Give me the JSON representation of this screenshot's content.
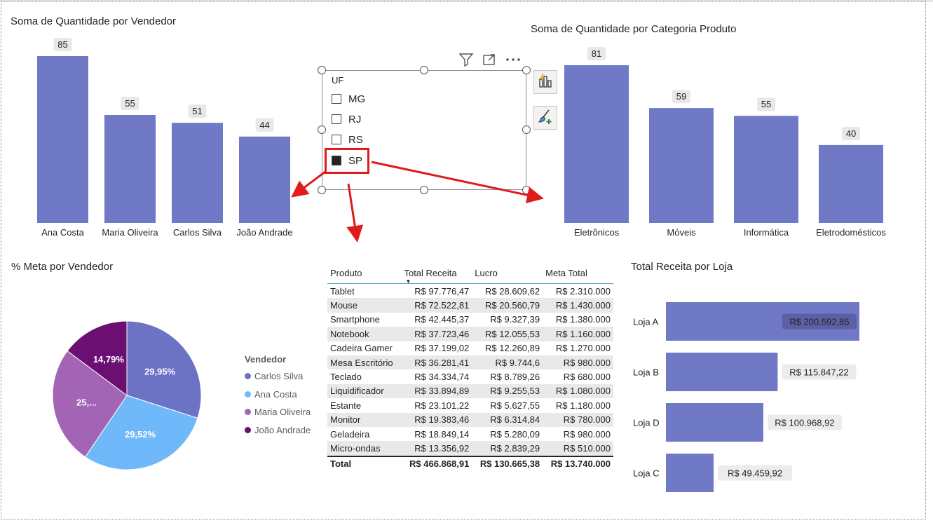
{
  "colors": {
    "bar": "#7079C6",
    "arrow": "#E01B1B",
    "pie": [
      "#6C73C4",
      "#6FB8F9",
      "#A364B5",
      "#6B0F72"
    ]
  },
  "vendedor_chart": {
    "title": "Soma de Quantidade por Vendedor"
  },
  "categoria_chart": {
    "title": "Soma de Quantidade por Categoria Produto"
  },
  "meta_chart": {
    "title": "% Meta por Vendedor",
    "legend_title": "Vendedor",
    "legend": [
      "Carlos Silva",
      "Ana Costa",
      "Maria Oliveira",
      "João Andrade"
    ]
  },
  "loja_chart": {
    "title": "Total Receita por Loja"
  },
  "slicer": {
    "title": "UF",
    "items": [
      {
        "label": "MG",
        "checked": false
      },
      {
        "label": "RJ",
        "checked": false
      },
      {
        "label": "RS",
        "checked": false
      },
      {
        "label": "SP",
        "checked": true
      }
    ],
    "icons": [
      "filter-icon",
      "focus-mode-icon",
      "more-options-icon"
    ],
    "side_buttons": [
      "build-visual-icon",
      "format-visual-icon"
    ]
  },
  "table": {
    "headers": [
      "Produto",
      "Total Receita",
      "Lucro",
      "Meta Total"
    ],
    "rows": [
      [
        "Tablet",
        "R$ 97.776,47",
        "R$ 28.609,62",
        "R$ 2.310.000"
      ],
      [
        "Mouse",
        "R$ 72.522,81",
        "R$ 20.560,79",
        "R$ 1.430.000"
      ],
      [
        "Smartphone",
        "R$ 42.445,37",
        "R$ 9.327,39",
        "R$ 1.380.000"
      ],
      [
        "Notebook",
        "R$ 37.723,46",
        "R$ 12.055,53",
        "R$ 1.160.000"
      ],
      [
        "Cadeira Gamer",
        "R$ 37.199,02",
        "R$ 12.260,89",
        "R$ 1.270.000"
      ],
      [
        "Mesa Escritório",
        "R$ 36.281,41",
        "R$ 9.744,6",
        "R$ 980.000"
      ],
      [
        "Teclado",
        "R$ 34.334,74",
        "R$ 8.789,26",
        "R$ 680.000"
      ],
      [
        "Liquidificador",
        "R$ 33.894,89",
        "R$ 9.255,53",
        "R$ 1.080.000"
      ],
      [
        "Estante",
        "R$ 23.101,22",
        "R$ 5.627,55",
        "R$ 1.180.000"
      ],
      [
        "Monitor",
        "R$ 19.383,46",
        "R$ 6.314,84",
        "R$ 780.000"
      ],
      [
        "Geladeira",
        "R$ 18.849,14",
        "R$ 5.280,09",
        "R$ 980.000"
      ],
      [
        "Micro-ondas",
        "R$ 13.356,92",
        "R$ 2.839,29",
        "R$ 510.000"
      ]
    ],
    "total": [
      "Total",
      "R$ 466.868,91",
      "R$ 130.665,38",
      "R$ 13.740.000"
    ]
  },
  "chart_data": [
    {
      "type": "bar",
      "title": "Soma de Quantidade por Vendedor",
      "categories": [
        "Ana Costa",
        "Maria Oliveira",
        "Carlos Silva",
        "João Andrade"
      ],
      "values": [
        85,
        55,
        51,
        44
      ],
      "ylim": [
        0,
        85
      ]
    },
    {
      "type": "bar",
      "title": "Soma de Quantidade por Categoria Produto",
      "categories": [
        "Eletrônicos",
        "Móveis",
        "Informática",
        "Eletrodomésticos"
      ],
      "values": [
        81,
        59,
        55,
        40
      ],
      "ylim": [
        0,
        81
      ]
    },
    {
      "type": "pie",
      "title": "% Meta por Vendedor",
      "categories": [
        "Carlos Silva",
        "Ana Costa",
        "Maria Oliveira",
        "João Andrade"
      ],
      "values": [
        29.95,
        29.52,
        25.74,
        14.79
      ],
      "labels": [
        "29,95%",
        "29,52%",
        "25,...",
        "14,79%"
      ]
    },
    {
      "type": "bar",
      "orientation": "horizontal",
      "title": "Total Receita por Loja",
      "categories": [
        "Loja A",
        "Loja B",
        "Loja D",
        "Loja C"
      ],
      "values": [
        200592.85,
        115847.22,
        100968.92,
        49459.92
      ],
      "labels": [
        "R$ 200.592,85",
        "R$ 115.847,22",
        "R$ 100.968,92",
        "R$ 49.459,92"
      ],
      "xlim": [
        0,
        200592.85
      ]
    }
  ]
}
